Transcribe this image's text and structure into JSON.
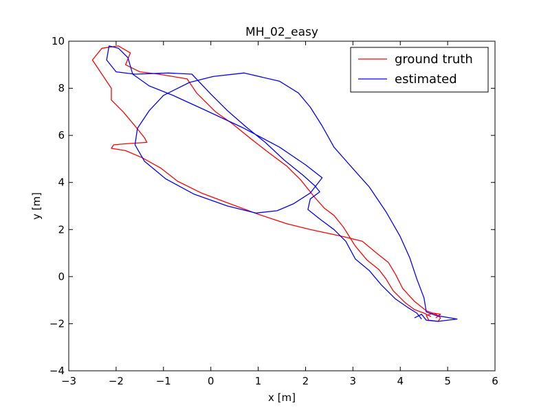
{
  "chart_data": {
    "type": "line",
    "title": "MH_02_easy",
    "xlabel": "x [m]",
    "ylabel": "y [m]",
    "xlim": [
      -3,
      6
    ],
    "ylim": [
      -4,
      10
    ],
    "xticks": [
      -3,
      -2,
      -1,
      0,
      1,
      2,
      3,
      4,
      5,
      6
    ],
    "yticks": [
      -4,
      -2,
      0,
      2,
      4,
      6,
      8,
      10
    ],
    "xtick_labels": [
      "−3",
      "−2",
      "−1",
      "0",
      "1",
      "2",
      "3",
      "4",
      "5",
      "6"
    ],
    "ytick_labels": [
      "−4",
      "−2",
      "0",
      "2",
      "4",
      "6",
      "8",
      "10"
    ],
    "grid": false,
    "legend_position": "top-right",
    "series": [
      {
        "name": "ground truth",
        "color": "#ff0000",
        "points": [
          [
            4.65,
            -1.7
          ],
          [
            4.5,
            -1.55
          ],
          [
            4.3,
            -1.4
          ],
          [
            4.1,
            -1.1
          ],
          [
            3.85,
            -0.6
          ],
          [
            3.7,
            -0.1
          ],
          [
            3.55,
            0.3
          ],
          [
            3.3,
            0.7
          ],
          [
            3.05,
            1.3
          ],
          [
            2.8,
            2.1
          ],
          [
            2.6,
            2.6
          ],
          [
            2.4,
            2.9
          ],
          [
            2.2,
            3.35
          ],
          [
            2.1,
            3.6
          ],
          [
            1.9,
            4.1
          ],
          [
            1.6,
            4.7
          ],
          [
            1.2,
            5.3
          ],
          [
            0.85,
            5.85
          ],
          [
            0.45,
            6.5
          ],
          [
            0.1,
            7.0
          ],
          [
            -0.3,
            7.8
          ],
          [
            -0.5,
            8.4
          ],
          [
            -1.1,
            8.6
          ],
          [
            -1.5,
            8.7
          ],
          [
            -1.8,
            9.0
          ],
          [
            -1.7,
            9.5
          ],
          [
            -1.95,
            9.8
          ],
          [
            -2.3,
            9.7
          ],
          [
            -2.5,
            9.2
          ],
          [
            -2.3,
            8.6
          ],
          [
            -2.1,
            8.0
          ],
          [
            -2.1,
            7.5
          ],
          [
            -1.85,
            7.0
          ],
          [
            -1.6,
            6.4
          ],
          [
            -1.4,
            5.9
          ],
          [
            -1.35,
            5.7
          ],
          [
            -1.75,
            5.65
          ],
          [
            -2.05,
            5.6
          ],
          [
            -2.1,
            5.45
          ],
          [
            -1.8,
            5.35
          ],
          [
            -1.45,
            5.05
          ],
          [
            -1.05,
            4.6
          ],
          [
            -0.7,
            4.05
          ],
          [
            -0.2,
            3.55
          ],
          [
            0.4,
            3.1
          ],
          [
            1.0,
            2.65
          ],
          [
            1.6,
            2.25
          ],
          [
            2.1,
            2.0
          ],
          [
            2.8,
            1.7
          ],
          [
            3.2,
            1.5
          ],
          [
            3.5,
            1.0
          ],
          [
            3.75,
            0.6
          ],
          [
            3.9,
            0.1
          ],
          [
            4.05,
            -0.5
          ],
          [
            4.3,
            -1.05
          ],
          [
            4.55,
            -1.45
          ],
          [
            4.75,
            -1.6
          ],
          [
            4.85,
            -1.75
          ],
          [
            4.8,
            -1.9
          ],
          [
            4.6,
            -1.85
          ],
          [
            4.55,
            -1.65
          ],
          [
            4.7,
            -1.55
          ],
          [
            4.85,
            -1.6
          ],
          [
            4.75,
            -1.75
          ]
        ]
      },
      {
        "name": "estimated",
        "color": "#0000ff",
        "points": [
          [
            4.45,
            -1.8
          ],
          [
            4.35,
            -1.55
          ],
          [
            4.15,
            -1.3
          ],
          [
            3.9,
            -0.95
          ],
          [
            3.6,
            -0.35
          ],
          [
            3.35,
            0.25
          ],
          [
            3.05,
            0.75
          ],
          [
            2.85,
            1.5
          ],
          [
            2.6,
            2.0
          ],
          [
            2.3,
            2.45
          ],
          [
            2.05,
            2.85
          ],
          [
            2.1,
            3.3
          ],
          [
            2.3,
            3.6
          ],
          [
            2.2,
            3.85
          ],
          [
            1.95,
            4.3
          ],
          [
            1.55,
            4.95
          ],
          [
            1.15,
            5.7
          ],
          [
            0.75,
            6.35
          ],
          [
            0.35,
            7.05
          ],
          [
            0.0,
            7.75
          ],
          [
            -0.4,
            8.6
          ],
          [
            -0.9,
            8.65
          ],
          [
            -1.6,
            8.6
          ],
          [
            -2.0,
            8.7
          ],
          [
            -2.2,
            9.2
          ],
          [
            -2.15,
            9.8
          ],
          [
            -1.95,
            9.7
          ],
          [
            -1.75,
            9.3
          ],
          [
            -1.65,
            8.6
          ],
          [
            -1.3,
            8.1
          ],
          [
            -0.8,
            7.7
          ],
          [
            -0.15,
            7.1
          ],
          [
            0.65,
            6.35
          ],
          [
            1.45,
            5.5
          ],
          [
            2.0,
            4.75
          ],
          [
            2.35,
            4.2
          ],
          [
            2.1,
            3.55
          ],
          [
            1.75,
            3.1
          ],
          [
            1.4,
            2.8
          ],
          [
            0.95,
            2.7
          ],
          [
            0.35,
            3.0
          ],
          [
            -0.35,
            3.5
          ],
          [
            -0.95,
            4.15
          ],
          [
            -1.4,
            4.9
          ],
          [
            -1.6,
            5.6
          ],
          [
            -1.55,
            6.3
          ],
          [
            -1.3,
            7.05
          ],
          [
            -1.0,
            7.7
          ],
          [
            -0.45,
            8.25
          ],
          [
            0.05,
            8.5
          ],
          [
            0.7,
            8.65
          ],
          [
            1.45,
            8.3
          ],
          [
            1.85,
            7.8
          ],
          [
            2.1,
            7.2
          ],
          [
            2.35,
            6.4
          ],
          [
            2.6,
            5.5
          ],
          [
            2.95,
            4.7
          ],
          [
            3.35,
            3.8
          ],
          [
            3.7,
            2.75
          ],
          [
            4.0,
            1.7
          ],
          [
            4.2,
            0.8
          ],
          [
            4.35,
            -0.1
          ],
          [
            4.5,
            -0.9
          ],
          [
            4.55,
            -1.5
          ],
          [
            4.75,
            -1.65
          ],
          [
            5.2,
            -1.8
          ],
          [
            4.8,
            -1.9
          ],
          [
            4.55,
            -1.85
          ],
          [
            4.45,
            -1.6
          ],
          [
            4.3,
            -1.75
          ]
        ]
      }
    ]
  }
}
